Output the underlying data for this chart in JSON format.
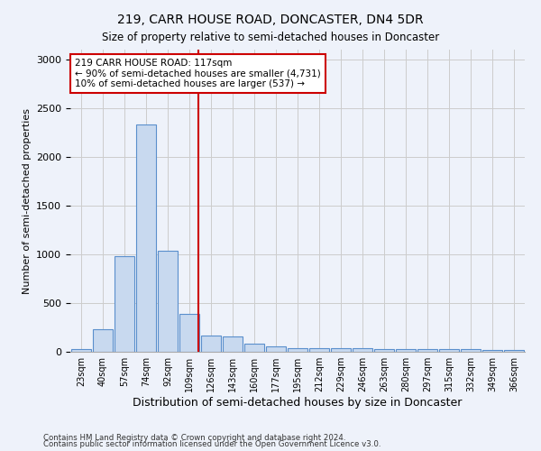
{
  "title": "219, CARR HOUSE ROAD, DONCASTER, DN4 5DR",
  "subtitle": "Size of property relative to semi-detached houses in Doncaster",
  "xlabel": "Distribution of semi-detached houses by size in Doncaster",
  "ylabel": "Number of semi-detached properties",
  "footnote1": "Contains HM Land Registry data © Crown copyright and database right 2024.",
  "footnote2": "Contains public sector information licensed under the Open Government Licence v3.0.",
  "bin_labels": [
    "23sqm",
    "40sqm",
    "57sqm",
    "74sqm",
    "92sqm",
    "109sqm",
    "126sqm",
    "143sqm",
    "160sqm",
    "177sqm",
    "195sqm",
    "212sqm",
    "229sqm",
    "246sqm",
    "263sqm",
    "280sqm",
    "297sqm",
    "315sqm",
    "332sqm",
    "349sqm",
    "366sqm"
  ],
  "bar_values": [
    30,
    230,
    980,
    2330,
    1040,
    390,
    165,
    160,
    80,
    55,
    40,
    40,
    40,
    40,
    30,
    30,
    30,
    30,
    25,
    22,
    22
  ],
  "bar_color": "#c8d9ef",
  "bar_edge_color": "#5a8fcc",
  "grid_color": "#cccccc",
  "background_color": "#eef2fa",
  "vline_x_index": 5.41,
  "vline_color": "#cc0000",
  "annotation_text": "219 CARR HOUSE ROAD: 117sqm\n← 90% of semi-detached houses are smaller (4,731)\n10% of semi-detached houses are larger (537) →",
  "annotation_box_color": "#ffffff",
  "annotation_border_color": "#cc0000",
  "ylim": [
    0,
    3100
  ],
  "yticks": [
    0,
    500,
    1000,
    1500,
    2000,
    2500,
    3000
  ]
}
